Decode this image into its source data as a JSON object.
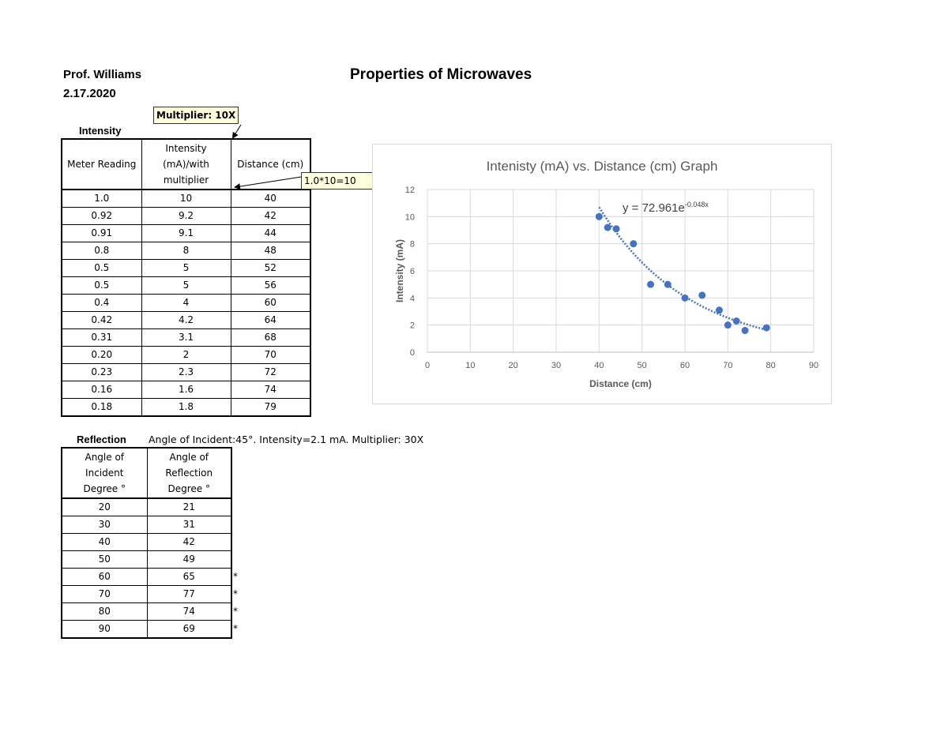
{
  "header": {
    "author": "Prof. Williams",
    "date": "2.17.2020",
    "title": "Properties of Microwaves"
  },
  "intensity_section": {
    "label": "Intensity",
    "columns": [
      "Meter Reading",
      "Intensity (mA)/with multiplier",
      "Distance (cm)"
    ],
    "column_lines": {
      "c0": [
        "Meter Reading"
      ],
      "c1": [
        "Intensity",
        "(mA)/with",
        "multiplier"
      ],
      "c2": [
        "Distance (cm)"
      ]
    },
    "rows": [
      [
        "1.0",
        "10",
        "40"
      ],
      [
        "0.92",
        "9.2",
        "42"
      ],
      [
        "0.91",
        "9.1",
        "44"
      ],
      [
        "0.8",
        "8",
        "48"
      ],
      [
        "0.5",
        "5",
        "52"
      ],
      [
        "0.5",
        "5",
        "56"
      ],
      [
        "0.4",
        "4",
        "60"
      ],
      [
        "0.42",
        "4.2",
        "64"
      ],
      [
        "0.31",
        "3.1",
        "68"
      ],
      [
        "0.20",
        "2",
        "70"
      ],
      [
        "0.23",
        "2.3",
        "72"
      ],
      [
        "0.16",
        "1.6",
        "74"
      ],
      [
        "0.18",
        "1.8",
        "79"
      ]
    ],
    "callouts": {
      "multiplier": "Multiplier: 10X",
      "example": "1.0*10=10"
    }
  },
  "reflection_section": {
    "label": "Reflection",
    "note": "Angle of Incident:45°. Intensity=2.1 mA. Multiplier: 30X",
    "column_lines": {
      "c0": [
        "Angle of",
        "Incident",
        "Degree °"
      ],
      "c1": [
        "Angle of",
        "Reflection",
        "Degree °"
      ]
    },
    "rows": [
      [
        "20",
        "21",
        ""
      ],
      [
        "30",
        "31",
        ""
      ],
      [
        "40",
        "42",
        ""
      ],
      [
        "50",
        "49",
        ""
      ],
      [
        "60",
        "65",
        "*"
      ],
      [
        "70",
        "77",
        "*"
      ],
      [
        "80",
        "74",
        "*"
      ],
      [
        "90",
        "69",
        "*"
      ]
    ]
  },
  "chart_data": {
    "type": "scatter",
    "title": "Intenisty (mA) vs. Distance (cm) Graph",
    "xlabel": "Distance (cm)",
    "ylabel": "Intensity (mA)",
    "xlim": [
      0,
      90
    ],
    "ylim": [
      0,
      12
    ],
    "xticks": [
      "0",
      "10",
      "20",
      "30",
      "40",
      "50",
      "60",
      "70",
      "80",
      "90"
    ],
    "yticks": [
      "0",
      "2",
      "4",
      "6",
      "8",
      "10",
      "12"
    ],
    "grid": true,
    "legend": "none",
    "series": [
      {
        "name": "Intensity",
        "color": "#4472c4",
        "x": [
          40,
          42,
          44,
          48,
          52,
          56,
          60,
          64,
          68,
          70,
          72,
          74,
          79
        ],
        "y": [
          10,
          9.2,
          9.1,
          8,
          5,
          5,
          4,
          4.2,
          3.1,
          2,
          2.3,
          1.6,
          1.8
        ]
      }
    ],
    "trendline": {
      "type": "exponential",
      "equation_text": "y = 72.961e",
      "equation_exponent": "-0.048x",
      "a": 72.961,
      "b": -0.048,
      "x_range": [
        40,
        79
      ],
      "style": "dotted",
      "color": "#4472c4"
    }
  }
}
